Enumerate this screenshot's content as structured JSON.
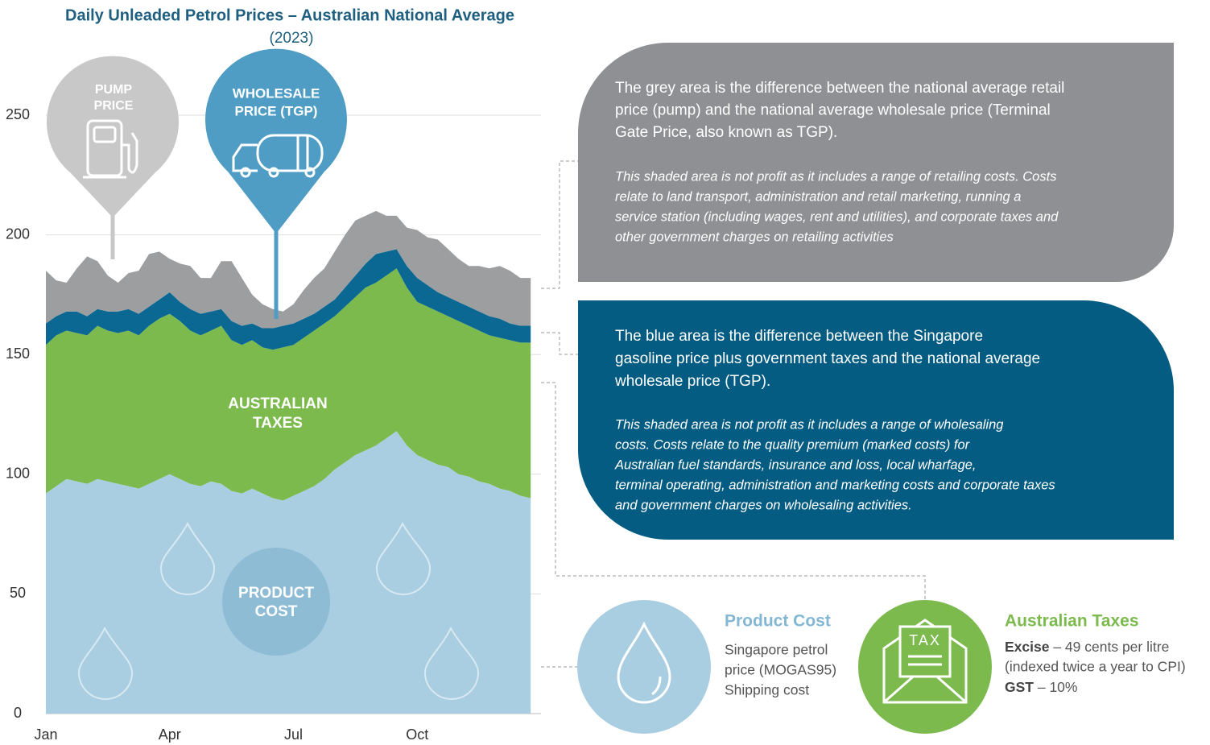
{
  "chart_data": {
    "type": "stacked-area",
    "title": "Daily Unleaded Petrol Prices – Australian National Average",
    "subtitle": "(2023)",
    "categories": [
      "Jan",
      null,
      null,
      null,
      null,
      null,
      null,
      null,
      null,
      null,
      null,
      null,
      "Apr",
      null,
      null,
      null,
      null,
      null,
      null,
      null,
      null,
      null,
      null,
      null,
      "Jul",
      null,
      null,
      null,
      null,
      null,
      null,
      null,
      null,
      null,
      null,
      null,
      "Oct",
      null,
      null,
      null,
      null,
      null,
      null,
      null,
      null,
      null,
      null,
      null
    ],
    "series": [
      {
        "color": "#a9cee1",
        "values": [
          92,
          95,
          98,
          97,
          96,
          98,
          97,
          96,
          95,
          94,
          96,
          98,
          100,
          98,
          96,
          95,
          97,
          96,
          93,
          92,
          94,
          92,
          90,
          89,
          91,
          93,
          95,
          98,
          102,
          105,
          108,
          110,
          112,
          115,
          118,
          112,
          108,
          106,
          104,
          103,
          100,
          99,
          97,
          96,
          94,
          93,
          91,
          90
        ]
      },
      {
        "color": "#7cba4e",
        "values": [
          62,
          63,
          62,
          62,
          62,
          64,
          63,
          63,
          65,
          64,
          66,
          67,
          67,
          66,
          64,
          63,
          63,
          66,
          63,
          62,
          62,
          61,
          62,
          64,
          63,
          64,
          65,
          65,
          64,
          65,
          66,
          68,
          68,
          68,
          68,
          66,
          64,
          64,
          64,
          63,
          64,
          63,
          63,
          62,
          63,
          63,
          64,
          65
        ]
      },
      {
        "color": "#0b6892",
        "values": [
          9,
          8,
          8,
          9,
          8,
          7,
          8,
          9,
          9,
          9,
          8,
          8,
          9,
          8,
          9,
          9,
          8,
          7,
          8,
          8,
          7,
          8,
          9,
          9,
          9,
          8,
          7,
          7,
          7,
          8,
          9,
          10,
          12,
          10,
          8,
          9,
          10,
          9,
          8,
          8,
          8,
          8,
          8,
          8,
          8,
          7,
          7,
          7
        ]
      },
      {
        "color": "#9d9ea0",
        "values": [
          22,
          15,
          12,
          18,
          25,
          20,
          15,
          12,
          15,
          18,
          22,
          20,
          14,
          16,
          18,
          15,
          14,
          20,
          25,
          20,
          12,
          10,
          8,
          6,
          8,
          12,
          15,
          16,
          20,
          22,
          23,
          20,
          18,
          15,
          14,
          16,
          20,
          20,
          22,
          20,
          18,
          17,
          19,
          20,
          22,
          22,
          20,
          20
        ]
      }
    ],
    "ylim": [
      0,
      250
    ],
    "yticks": [
      0,
      50,
      100,
      150,
      200,
      250
    ],
    "grid": true,
    "annotations": {
      "pump": [
        "PUMP",
        "PRICE"
      ],
      "wholesale": [
        "WHOLESALE",
        "PRICE (TGP)"
      ],
      "taxes": [
        "AUSTRALIAN",
        "TAXES"
      ],
      "product": [
        "PRODUCT",
        "COST"
      ]
    }
  },
  "panels": {
    "grey": {
      "lines": [
        "The grey area is the difference between the national average retail",
        "price (pump) and the national average wholesale price (Terminal",
        "Gate Price, also known as TGP)."
      ],
      "note": [
        "This shaded area is not profit as it includes a range of retailing costs. Costs",
        "relate to land transport, administration and retail marketing, running a",
        "service station (including wages, rent and utilities), and corporate taxes and",
        "other government charges on retailing activities"
      ]
    },
    "blue": {
      "lines": [
        "The blue area is the difference between the Singapore",
        "gasoline price plus government taxes and the national average",
        "wholesale price (TGP)."
      ],
      "note": [
        "This shaded area is not profit as it includes a range of wholesaling",
        "costs. Costs relate to the quality premium (marked costs) for",
        "Australian fuel standards, insurance and loss, local wharfage,",
        "terminal operating, administration and marketing costs and corporate taxes",
        "and government charges on wholesaling activities."
      ]
    }
  },
  "legend": {
    "product": {
      "title": "Product Cost",
      "lines": [
        "Singapore petrol",
        "price (MOGAS95)",
        "Shipping cost"
      ]
    },
    "taxes": {
      "title": "Australian Taxes",
      "icon": "TAX",
      "excise": {
        "term": "Excise",
        "text": " – 49 cents per litre"
      },
      "index": "(indexed twice a year to CPI)",
      "gst": {
        "term": "GST",
        "text": " – 10%"
      }
    }
  }
}
